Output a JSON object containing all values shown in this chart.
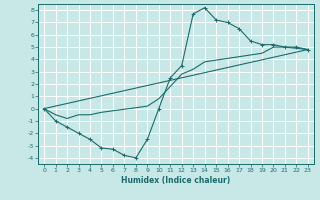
{
  "xlabel": "Humidex (Indice chaleur)",
  "xlim": [
    -0.5,
    23.5
  ],
  "ylim": [
    -4.5,
    8.5
  ],
  "xticks": [
    0,
    1,
    2,
    3,
    4,
    5,
    6,
    7,
    8,
    9,
    10,
    11,
    12,
    13,
    14,
    15,
    16,
    17,
    18,
    19,
    20,
    21,
    22,
    23
  ],
  "yticks": [
    -4,
    -3,
    -2,
    -1,
    0,
    1,
    2,
    3,
    4,
    5,
    6,
    7,
    8
  ],
  "background_color": "#c8e8e8",
  "grid_color": "#ffffff",
  "line_color": "#1a6b6b",
  "line1_x": [
    0,
    1,
    2,
    3,
    4,
    5,
    6,
    7,
    8,
    9,
    10,
    11,
    12,
    13,
    14,
    15,
    16,
    17,
    18,
    19,
    20,
    21,
    22,
    23
  ],
  "line1_y": [
    0,
    -1,
    -1.5,
    -2,
    -2.5,
    -3.2,
    -3.3,
    -3.8,
    -4.0,
    -2.5,
    0,
    2.5,
    3.5,
    7.7,
    8.2,
    7.2,
    7.0,
    6.5,
    5.5,
    5.2,
    5.2,
    5.0,
    5.0,
    4.8
  ],
  "line2_x": [
    0,
    1,
    2,
    3,
    4,
    5,
    9,
    10,
    11,
    12,
    13,
    14,
    19,
    20,
    21,
    22,
    23
  ],
  "line2_y": [
    0,
    -0.5,
    -0.8,
    -0.5,
    -0.5,
    -0.3,
    0.2,
    0.8,
    1.8,
    2.8,
    3.2,
    3.8,
    4.5,
    5.0,
    5.0,
    4.9,
    4.8
  ],
  "line3_x": [
    0,
    23
  ],
  "line3_y": [
    0,
    4.8
  ]
}
